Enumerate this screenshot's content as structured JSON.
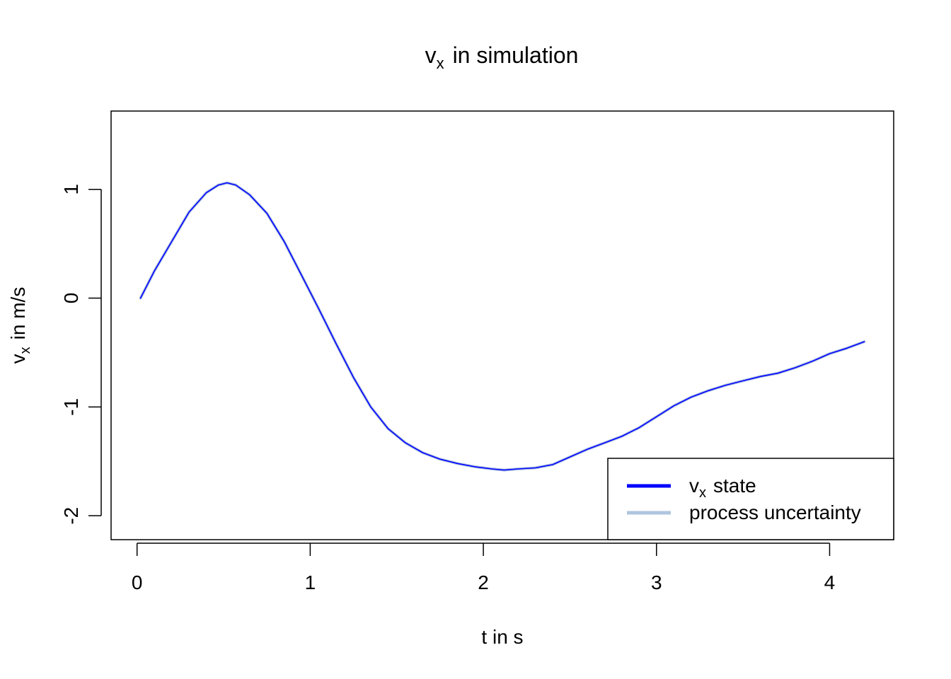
{
  "chart_data": {
    "type": "line",
    "title": {
      "main": "v",
      "sub": "x",
      "rest": "in simulation"
    },
    "xlabel": "t in s",
    "ylabel": {
      "main": "v",
      "sub": "x",
      "rest": "in m/s"
    },
    "xlim": [
      -0.15,
      4.37
    ],
    "ylim": [
      -2.22,
      1.72
    ],
    "xticks": [
      0,
      1,
      2,
      3,
      4
    ],
    "xtick_labels": [
      "0",
      "1",
      "2",
      "3",
      "4"
    ],
    "yticks": [
      -2,
      -1,
      0,
      1
    ],
    "ytick_labels": [
      "-2",
      "-1",
      "0",
      "1"
    ],
    "grid": false,
    "legend_position": "bottom-right",
    "legend": [
      {
        "label_main": "v",
        "label_sub": "x",
        "label_rest": "state",
        "color": "#0000ff"
      },
      {
        "label": "process uncertainty",
        "color": "#b0c4de"
      }
    ],
    "series": [
      {
        "name": "vx state",
        "color": "#0000ff",
        "x": [
          0.02,
          0.1,
          0.2,
          0.3,
          0.4,
          0.47,
          0.52,
          0.57,
          0.65,
          0.75,
          0.85,
          0.95,
          1.05,
          1.15,
          1.25,
          1.35,
          1.45,
          1.55,
          1.65,
          1.75,
          1.85,
          1.95,
          2.05,
          2.12,
          2.2,
          2.3,
          2.4,
          2.5,
          2.6,
          2.7,
          2.8,
          2.9,
          3.0,
          3.1,
          3.2,
          3.3,
          3.4,
          3.5,
          3.6,
          3.7,
          3.8,
          3.9,
          4.0,
          4.1,
          4.2
        ],
        "y": [
          0.0,
          0.25,
          0.52,
          0.79,
          0.97,
          1.04,
          1.06,
          1.04,
          0.95,
          0.78,
          0.52,
          0.21,
          -0.1,
          -0.42,
          -0.73,
          -1.0,
          -1.2,
          -1.33,
          -1.42,
          -1.48,
          -1.52,
          -1.55,
          -1.57,
          -1.58,
          -1.57,
          -1.56,
          -1.53,
          -1.46,
          -1.39,
          -1.33,
          -1.27,
          -1.19,
          -1.09,
          -0.99,
          -0.91,
          -0.85,
          -0.8,
          -0.76,
          -0.72,
          -0.69,
          -0.64,
          -0.58,
          -0.51,
          -0.46,
          -0.4
        ]
      },
      {
        "name": "process uncertainty",
        "color": "#b0c4de",
        "x": [
          0.02,
          0.1,
          0.2,
          0.3,
          0.4,
          0.47,
          0.52,
          0.57,
          0.65,
          0.75,
          0.85,
          0.95,
          1.05,
          1.15,
          1.25,
          1.35,
          1.45,
          1.55,
          1.65,
          1.75,
          1.85,
          1.95,
          2.05,
          2.12,
          2.2,
          2.3,
          2.4,
          2.5,
          2.6,
          2.7,
          2.8,
          2.9,
          3.0,
          3.1,
          3.2,
          3.3,
          3.4,
          3.5,
          3.6,
          3.7,
          3.8,
          3.9,
          4.0,
          4.1,
          4.2
        ],
        "y": [
          0.0,
          0.25,
          0.52,
          0.79,
          0.97,
          1.04,
          1.06,
          1.04,
          0.95,
          0.78,
          0.52,
          0.21,
          -0.1,
          -0.42,
          -0.73,
          -1.0,
          -1.2,
          -1.33,
          -1.42,
          -1.48,
          -1.52,
          -1.55,
          -1.57,
          -1.58,
          -1.57,
          -1.56,
          -1.53,
          -1.46,
          -1.39,
          -1.33,
          -1.27,
          -1.19,
          -1.09,
          -0.99,
          -0.91,
          -0.85,
          -0.8,
          -0.76,
          -0.72,
          -0.69,
          -0.64,
          -0.58,
          -0.51,
          -0.46,
          -0.4
        ]
      }
    ]
  }
}
